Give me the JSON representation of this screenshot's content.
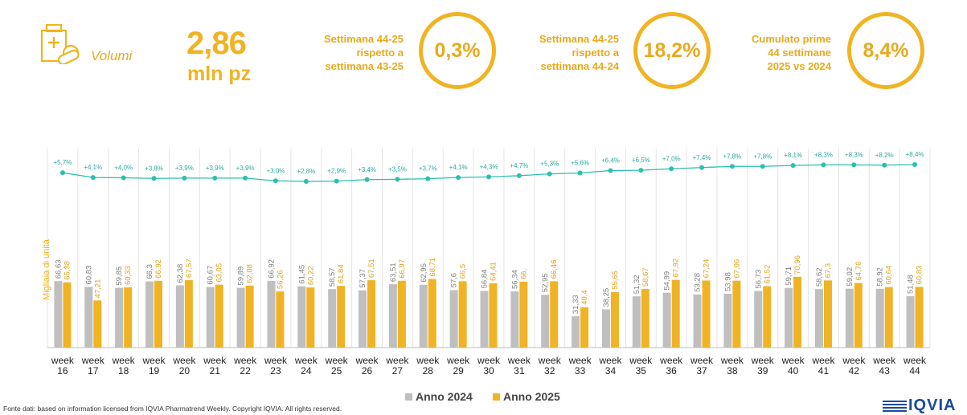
{
  "header": {
    "volumi_label": "Volumi",
    "total_value": "2,86",
    "total_unit": "mln pz",
    "kpis": [
      {
        "text_lines": [
          "Settimana 44-25",
          "rispetto a",
          "settimana 43-25"
        ],
        "value": "0,3%"
      },
      {
        "text_lines": [
          "Settimana 44-25",
          "rispetto a",
          "settimana 44-24"
        ],
        "value": "18,2%"
      },
      {
        "text_lines": [
          "Cumulato prime",
          "44 settimane",
          "2025 vs 2024"
        ],
        "value": "8,4%"
      }
    ]
  },
  "footer": {
    "source": "Fonte dati: based on information licensed from IQVIA Pharmatrend Weekly. Copyright IQVIA. All rights reserved.",
    "logo": "IQVIA"
  },
  "colors": {
    "accent": "#f0b323",
    "series_2024": "#bfbfbf",
    "series_2025": "#f0b323",
    "growth_line": "#2bbfae"
  },
  "icons": {
    "volumi": "pill-box-icon"
  },
  "chart_data": {
    "type": "bar",
    "ylabel": "Migliaia di unità",
    "categories": [
      "week 16",
      "week 17",
      "week 18",
      "week 19",
      "week 20",
      "week 21",
      "week 22",
      "week 23",
      "week 24",
      "week 25",
      "week 26",
      "week 27",
      "week 28",
      "week 29",
      "week 30",
      "week 31",
      "week 32",
      "week 33",
      "week 34",
      "week 35",
      "week 36",
      "week 37",
      "week 38",
      "week 39",
      "week 40",
      "week 41",
      "week 42",
      "week 43",
      "week 44"
    ],
    "series": [
      {
        "name": "Anno 2024",
        "values": [
          66.63,
          60.83,
          59.85,
          66.3,
          62.38,
          60.67,
          59.89,
          66.92,
          61.45,
          58.57,
          57.37,
          63.51,
          62.95,
          57.6,
          56.84,
          56.34,
          52.95,
          31.33,
          38.25,
          51.32,
          54.99,
          53.28,
          53.98,
          56.73,
          59.71,
          58.62,
          59.02,
          58.92,
          51.48
        ],
        "labels": [
          "66,63",
          "60,83",
          "59,85",
          "66,3",
          "62,38",
          "60,67",
          "59,89",
          "66,92",
          "61,45",
          "58,57",
          "57,37",
          "63,51",
          "62,95",
          "57,6",
          "56,84",
          "56,34",
          "52,95",
          "31,33",
          "38,25",
          "51,32",
          "54,99",
          "53,28",
          "53,98",
          "56,73",
          "59,71",
          "58,62",
          "59,02",
          "58,92",
          "51,48"
        ]
      },
      {
        "name": "Anno 2025",
        "values": [
          65.38,
          47.21,
          60.33,
          66.92,
          67.57,
          63.05,
          62.08,
          56.26,
          60.22,
          61.84,
          67.51,
          66.97,
          68.71,
          66.5,
          64.41,
          66.0,
          66.46,
          40.4,
          55.65,
          58.67,
          67.92,
          67.24,
          67.06,
          61.52,
          70.96,
          67.3,
          64.76,
          60.64,
          60.83
        ],
        "labels": [
          "65,38",
          "47,21",
          "60,33",
          "66,92",
          "67,57",
          "63,05",
          "62,08",
          "56,26",
          "60,22",
          "61,84",
          "67,51",
          "66,97",
          "68,71",
          "66,5",
          "64,41",
          "66,",
          "66,46",
          "40,4",
          "55,65",
          "58,67",
          "67,92",
          "67,24",
          "67,06",
          "61,52",
          "70,96",
          "67,3",
          "64,76",
          "60,64",
          "60,83"
        ]
      }
    ],
    "growth": {
      "values": [
        5.7,
        4.1,
        4.0,
        3.8,
        3.9,
        3.9,
        3.9,
        3.0,
        2.8,
        2.9,
        3.4,
        3.5,
        3.7,
        4.1,
        4.3,
        4.7,
        5.3,
        5.6,
        6.4,
        6.5,
        7.0,
        7.4,
        7.8,
        7.8,
        8.1,
        8.3,
        8.3,
        8.2,
        8.4
      ],
      "labels": [
        "+5,7%",
        "+4,1%",
        "+4,0%",
        "+3,8%",
        "+3,9%",
        "+3,9%",
        "+3,9%",
        "+3,0%",
        "+2,8%",
        "+2,9%",
        "+3,4%",
        "+3,5%",
        "+3,7%",
        "+4,1%",
        "+4,3%",
        "+4,7%",
        "+5,3%",
        "+5,6%",
        "+6,4%",
        "+6,5%",
        "+7,0%",
        "+7,4%",
        "+7,8%",
        "+7,8%",
        "+8,1%",
        "+8,3%",
        "+8,3%",
        "+8,2%",
        "+8,4%"
      ]
    },
    "ylim": [
      0,
      100
    ],
    "legend_position": "bottom-center"
  }
}
